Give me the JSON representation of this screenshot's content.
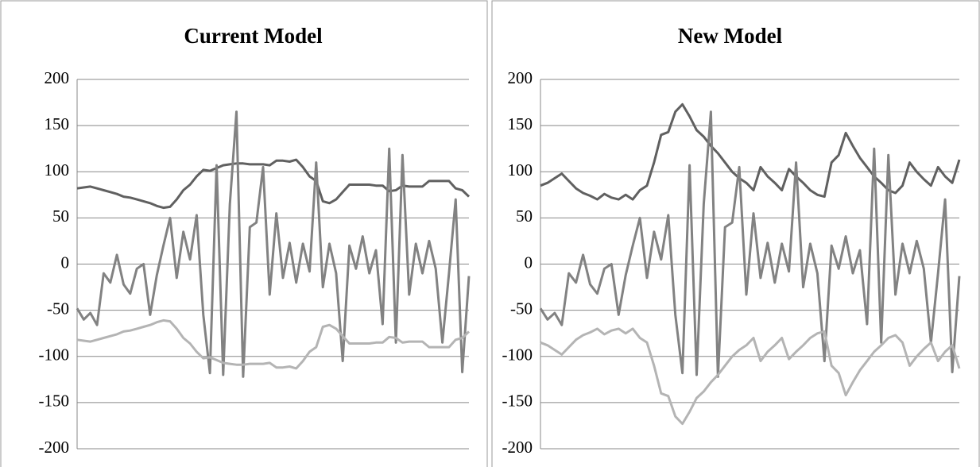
{
  "chart_data": [
    {
      "type": "line",
      "title": "Current Model",
      "categories": [
        null,
        null,
        null,
        null,
        null,
        null,
        null,
        null,
        null,
        null,
        null,
        null,
        null,
        null,
        null,
        null,
        null,
        null,
        null,
        null,
        null,
        null,
        null,
        null,
        null,
        null,
        null,
        null,
        null,
        null,
        null,
        null,
        null,
        null,
        null,
        null,
        null,
        null,
        null,
        null,
        null,
        null,
        null,
        null,
        null,
        null,
        null,
        null,
        null,
        null,
        null,
        null,
        null,
        null,
        null,
        null,
        null,
        null,
        null,
        null
      ],
      "series": [
        {
          "color": "#606060",
          "values": [
            82,
            83,
            84,
            82,
            80,
            78,
            76,
            73,
            72,
            70,
            68,
            66,
            63,
            61,
            62,
            70,
            80,
            86,
            95,
            102,
            101,
            104,
            107,
            108,
            109,
            109,
            108,
            108,
            108,
            107,
            112,
            112,
            111,
            113,
            105,
            95,
            90,
            68,
            66,
            70,
            78,
            86,
            86,
            86,
            86,
            85,
            85,
            79,
            80,
            85,
            84,
            84,
            84,
            90,
            90,
            90,
            90,
            82,
            80,
            73
          ]
        },
        {
          "color": "#828282",
          "values": [
            -48,
            -60,
            -53,
            -66,
            -10,
            -20,
            10,
            -22,
            -32,
            -5,
            0,
            -55,
            -12,
            20,
            50,
            -15,
            35,
            5,
            53,
            -55,
            -118,
            107,
            -120,
            65,
            165,
            -122,
            40,
            45,
            105,
            -33,
            55,
            -15,
            23,
            -20,
            22,
            -8,
            110,
            -25,
            22,
            -10,
            -105,
            20,
            -5,
            30,
            -10,
            15,
            -65,
            125,
            -85,
            118,
            -33,
            22,
            -10,
            25,
            -5,
            -85,
            -10,
            70,
            -117,
            -13
          ]
        },
        {
          "color": "#b4b4b4",
          "values": [
            -82,
            -83,
            -84,
            -82,
            -80,
            -78,
            -76,
            -73,
            -72,
            -70,
            -68,
            -66,
            -63,
            -61,
            -62,
            -70,
            -80,
            -86,
            -95,
            -102,
            -101,
            -104,
            -107,
            -108,
            -109,
            -109,
            -108,
            -108,
            -108,
            -107,
            -112,
            -112,
            -111,
            -113,
            -105,
            -95,
            -90,
            -68,
            -66,
            -70,
            -78,
            -86,
            -86,
            -86,
            -86,
            -85,
            -85,
            -79,
            -80,
            -85,
            -84,
            -84,
            -84,
            -90,
            -90,
            -90,
            -90,
            -82,
            -80,
            -73
          ]
        }
      ],
      "ylim": [
        -200,
        200
      ],
      "yticks": [
        -200,
        -150,
        -100,
        -50,
        0,
        50,
        100,
        150,
        200
      ],
      "grid": true
    },
    {
      "type": "line",
      "title": "New Model",
      "categories": [
        null,
        null,
        null,
        null,
        null,
        null,
        null,
        null,
        null,
        null,
        null,
        null,
        null,
        null,
        null,
        null,
        null,
        null,
        null,
        null,
        null,
        null,
        null,
        null,
        null,
        null,
        null,
        null,
        null,
        null,
        null,
        null,
        null,
        null,
        null,
        null,
        null,
        null,
        null,
        null,
        null,
        null,
        null,
        null,
        null,
        null,
        null,
        null,
        null,
        null,
        null,
        null,
        null,
        null,
        null,
        null,
        null,
        null,
        null,
        null
      ],
      "series": [
        {
          "color": "#606060",
          "values": [
            85,
            88,
            93,
            98,
            90,
            82,
            77,
            74,
            70,
            76,
            72,
            70,
            75,
            70,
            80,
            85,
            110,
            140,
            143,
            165,
            173,
            160,
            145,
            138,
            128,
            120,
            110,
            100,
            93,
            88,
            80,
            105,
            95,
            88,
            80,
            103,
            95,
            88,
            80,
            75,
            73,
            110,
            118,
            142,
            128,
            115,
            105,
            95,
            88,
            80,
            77,
            85,
            110,
            100,
            92,
            85,
            105,
            95,
            88,
            113
          ]
        },
        {
          "color": "#828282",
          "values": [
            -48,
            -60,
            -53,
            -66,
            -10,
            -20,
            10,
            -22,
            -32,
            -5,
            0,
            -55,
            -12,
            20,
            50,
            -15,
            35,
            5,
            53,
            -55,
            -118,
            107,
            -120,
            65,
            165,
            -122,
            40,
            45,
            105,
            -33,
            55,
            -15,
            23,
            -20,
            22,
            -8,
            110,
            -25,
            22,
            -10,
            -105,
            20,
            -5,
            30,
            -10,
            15,
            -65,
            125,
            -85,
            118,
            -33,
            22,
            -10,
            25,
            -5,
            -85,
            -10,
            70,
            -117,
            -13
          ]
        },
        {
          "color": "#b4b4b4",
          "values": [
            -85,
            -88,
            -93,
            -98,
            -90,
            -82,
            -77,
            -74,
            -70,
            -76,
            -72,
            -70,
            -75,
            -70,
            -80,
            -85,
            -110,
            -140,
            -143,
            -165,
            -173,
            -160,
            -145,
            -138,
            -128,
            -120,
            -110,
            -100,
            -93,
            -88,
            -80,
            -105,
            -95,
            -88,
            -80,
            -103,
            -95,
            -88,
            -80,
            -75,
            -73,
            -110,
            -118,
            -142,
            -128,
            -115,
            -105,
            -95,
            -88,
            -80,
            -77,
            -85,
            -110,
            -100,
            -92,
            -85,
            -105,
            -95,
            -88,
            -113
          ]
        }
      ],
      "ylim": [
        -200,
        200
      ],
      "yticks": [
        -200,
        -150,
        -100,
        -50,
        0,
        50,
        100,
        150,
        200
      ],
      "grid": true
    }
  ]
}
